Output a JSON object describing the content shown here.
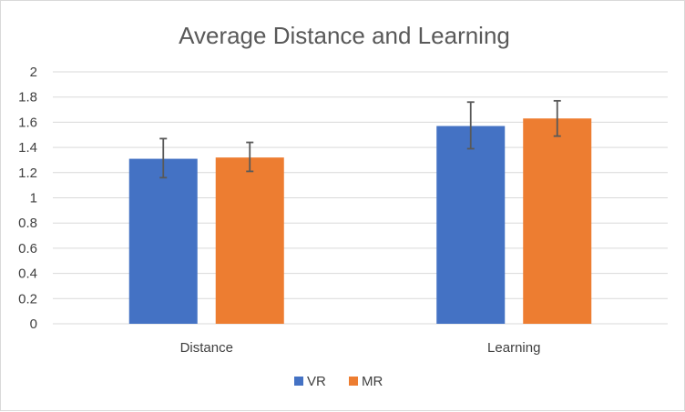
{
  "chart_data": {
    "type": "bar",
    "title": "Average Distance and Learning",
    "xlabel": "",
    "ylabel": "",
    "categories": [
      "Distance",
      "Learning"
    ],
    "ylim": [
      0,
      2
    ],
    "yticks": [
      "0",
      "0.2",
      "0.4",
      "0.6",
      "0.8",
      "1",
      "1.2",
      "1.4",
      "1.6",
      "1.8",
      "2"
    ],
    "grid": true,
    "legend": "bottom",
    "series": [
      {
        "name": "VR",
        "values": [
          1.31,
          1.57
        ],
        "error_low": [
          1.16,
          1.39
        ],
        "error_high": [
          1.47,
          1.76
        ],
        "color": "#4472C4"
      },
      {
        "name": "MR",
        "values": [
          1.32,
          1.63
        ],
        "error_low": [
          1.21,
          1.49
        ],
        "error_high": [
          1.44,
          1.77
        ],
        "color": "#ED7D31"
      }
    ],
    "gridline_color": "#d9d9d9",
    "errorbar_color": "#595959"
  }
}
